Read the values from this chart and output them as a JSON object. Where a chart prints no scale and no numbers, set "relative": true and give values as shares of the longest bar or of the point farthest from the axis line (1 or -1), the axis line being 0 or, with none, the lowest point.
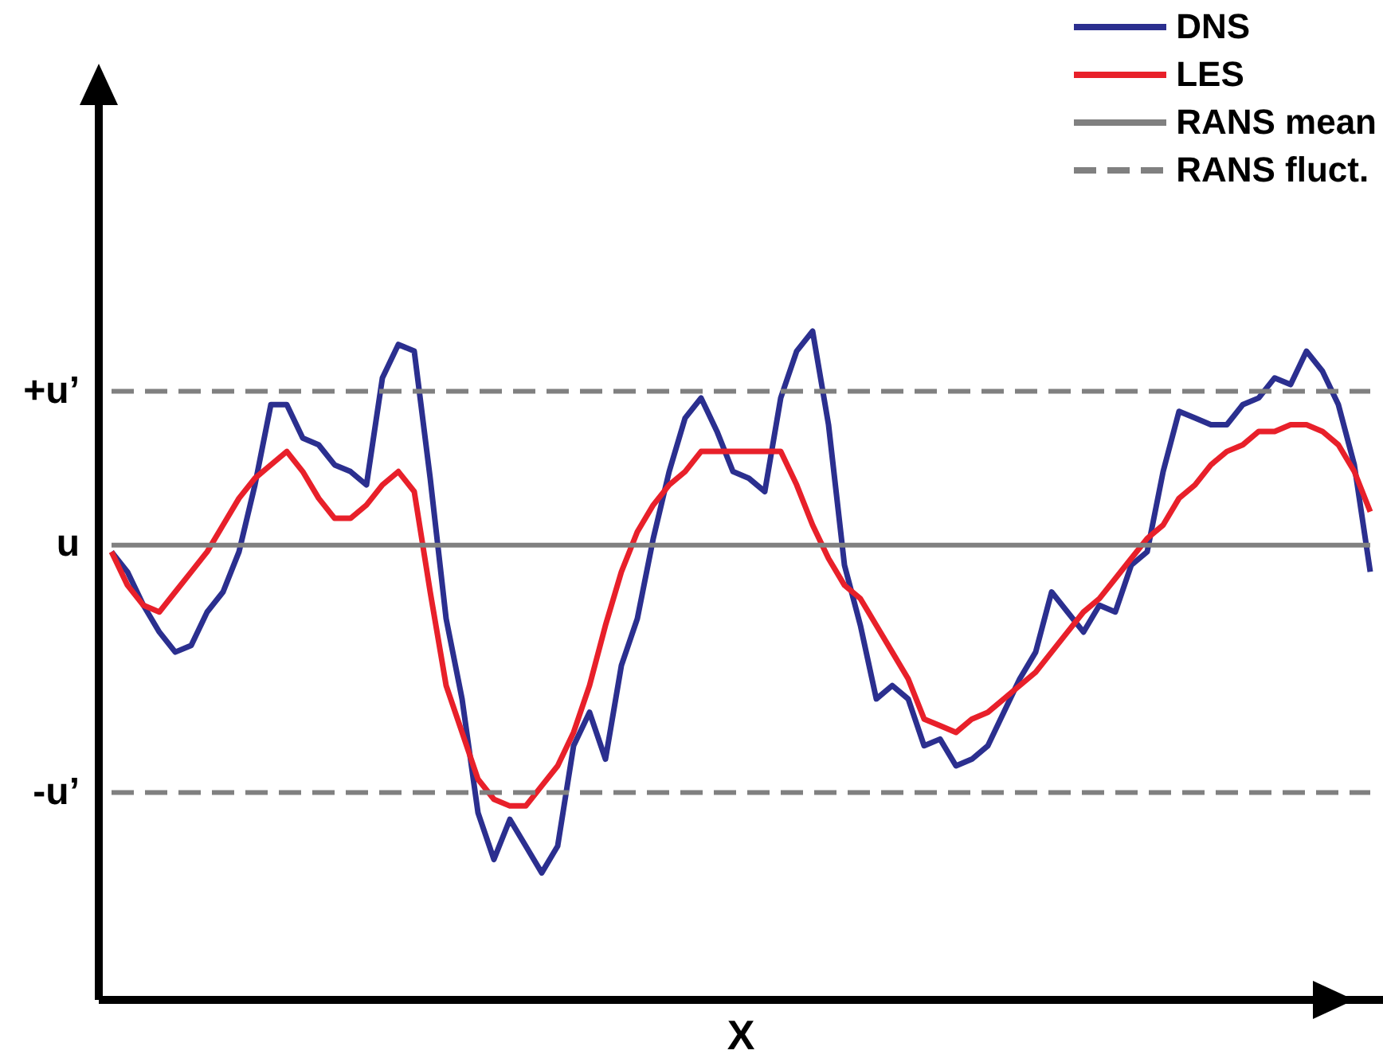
{
  "chart_data": {
    "type": "line",
    "xlabel": "X",
    "relative": true,
    "categories": [
      null,
      null,
      null,
      null,
      null,
      null,
      null,
      null,
      null,
      null,
      null,
      null,
      null,
      null,
      null,
      null,
      null,
      null,
      null,
      null,
      null,
      null,
      null,
      null,
      null,
      null,
      null,
      null,
      null,
      null,
      null,
      null,
      null,
      null,
      null,
      null,
      null,
      null,
      null,
      null,
      null,
      null,
      null,
      null,
      null,
      null,
      null,
      null,
      null,
      null,
      null,
      null,
      null,
      null,
      null,
      null,
      null,
      null,
      null,
      null,
      null,
      null,
      null,
      null,
      null,
      null,
      null,
      null,
      null,
      null,
      null,
      null,
      null,
      null,
      null,
      null,
      null,
      null,
      null,
      null
    ],
    "annotations": [
      "+u’",
      "u",
      "-u’"
    ],
    "grid": false,
    "legend": "top right",
    "marker": "none",
    "series": [
      {
        "name": "DNS",
        "color": "#2b2f8f",
        "line_style": "solid",
        "values": [
          0.67,
          0.64,
          0.59,
          0.55,
          0.52,
          0.53,
          0.58,
          0.61,
          0.67,
          0.77,
          0.89,
          0.89,
          0.84,
          0.83,
          0.8,
          0.79,
          0.77,
          0.93,
          0.98,
          0.97,
          0.78,
          0.57,
          0.45,
          0.28,
          0.21,
          0.27,
          0.23,
          0.19,
          0.23,
          0.38,
          0.43,
          0.36,
          0.5,
          0.57,
          0.69,
          0.79,
          0.87,
          0.9,
          0.85,
          0.79,
          0.78,
          0.76,
          0.9,
          0.97,
          1.0,
          0.86,
          0.65,
          0.56,
          0.45,
          0.47,
          0.45,
          0.38,
          0.39,
          0.35,
          0.36,
          0.38,
          0.43,
          0.48,
          0.52,
          0.61,
          0.58,
          0.55,
          0.59,
          0.58,
          0.65,
          0.67,
          0.79,
          0.88,
          0.87,
          0.86,
          0.86,
          0.89,
          0.9,
          0.93,
          0.92,
          0.97,
          0.94,
          0.89,
          0.8,
          0.64
        ]
      },
      {
        "name": "LES",
        "color": "#e8202a",
        "line_style": "solid",
        "values": [
          0.67,
          0.62,
          0.59,
          0.58,
          0.61,
          0.64,
          0.67,
          0.71,
          0.75,
          0.78,
          0.8,
          0.82,
          0.79,
          0.75,
          0.72,
          0.72,
          0.74,
          0.77,
          0.79,
          0.76,
          0.61,
          0.47,
          0.4,
          0.33,
          0.3,
          0.29,
          0.29,
          0.32,
          0.35,
          0.4,
          0.47,
          0.56,
          0.64,
          0.7,
          0.74,
          0.77,
          0.79,
          0.82,
          0.82,
          0.82,
          0.82,
          0.82,
          0.82,
          0.77,
          0.71,
          0.66,
          0.62,
          0.6,
          0.56,
          0.52,
          0.48,
          0.42,
          0.41,
          0.4,
          0.42,
          0.43,
          0.45,
          0.47,
          0.49,
          0.52,
          0.55,
          0.58,
          0.6,
          0.63,
          0.66,
          0.69,
          0.71,
          0.75,
          0.77,
          0.8,
          0.82,
          0.83,
          0.85,
          0.85,
          0.86,
          0.86,
          0.85,
          0.83,
          0.79,
          0.73
        ]
      },
      {
        "name": "RANS mean",
        "color": "#808080",
        "line_style": "solid",
        "values": [
          0.68,
          0.68,
          0.68,
          0.68,
          0.68,
          0.68,
          0.68,
          0.68,
          0.68,
          0.68,
          0.68,
          0.68,
          0.68,
          0.68,
          0.68,
          0.68,
          0.68,
          0.68,
          0.68,
          0.68,
          0.68,
          0.68,
          0.68,
          0.68,
          0.68,
          0.68,
          0.68,
          0.68,
          0.68,
          0.68,
          0.68,
          0.68,
          0.68,
          0.68,
          0.68,
          0.68,
          0.68,
          0.68,
          0.68,
          0.68,
          0.68,
          0.68,
          0.68,
          0.68,
          0.68,
          0.68,
          0.68,
          0.68,
          0.68,
          0.68,
          0.68,
          0.68,
          0.68,
          0.68,
          0.68,
          0.68,
          0.68,
          0.68,
          0.68,
          0.68,
          0.68,
          0.68,
          0.68,
          0.68,
          0.68,
          0.68,
          0.68,
          0.68,
          0.68,
          0.68,
          0.68,
          0.68,
          0.68,
          0.68,
          0.68,
          0.68,
          0.68,
          0.68,
          0.68,
          0.68
        ]
      },
      {
        "name": "RANS fluct.",
        "color": "#808080",
        "line_style": "dashed",
        "values": [
          0.91,
          0.91,
          0.91,
          0.91,
          0.91,
          0.91,
          0.91,
          0.91,
          0.91,
          0.91,
          0.91,
          0.91,
          0.91,
          0.91,
          0.91,
          0.91,
          0.91,
          0.91,
          0.91,
          0.91,
          0.91,
          0.91,
          0.91,
          0.91,
          0.91,
          0.91,
          0.91,
          0.91,
          0.91,
          0.91,
          0.91,
          0.91,
          0.91,
          0.91,
          0.91,
          0.91,
          0.91,
          0.91,
          0.91,
          0.91,
          0.91,
          0.91,
          0.91,
          0.91,
          0.91,
          0.91,
          0.91,
          0.91,
          0.91,
          0.91,
          0.91,
          0.91,
          0.91,
          0.91,
          0.91,
          0.91,
          0.91,
          0.91,
          0.91,
          0.91,
          0.91,
          0.91,
          0.91,
          0.91,
          0.91,
          0.91,
          0.91,
          0.91,
          0.91,
          0.91,
          0.91,
          0.91,
          0.91,
          0.91,
          0.91,
          0.91,
          0.91,
          0.91,
          0.91,
          0.91
        ]
      },
      {
        "color": "#808080",
        "line_style": "dashed",
        "values": [
          0.31,
          0.31,
          0.31,
          0.31,
          0.31,
          0.31,
          0.31,
          0.31,
          0.31,
          0.31,
          0.31,
          0.31,
          0.31,
          0.31,
          0.31,
          0.31,
          0.31,
          0.31,
          0.31,
          0.31,
          0.31,
          0.31,
          0.31,
          0.31,
          0.31,
          0.31,
          0.31,
          0.31,
          0.31,
          0.31,
          0.31,
          0.31,
          0.31,
          0.31,
          0.31,
          0.31,
          0.31,
          0.31,
          0.31,
          0.31,
          0.31,
          0.31,
          0.31,
          0.31,
          0.31,
          0.31,
          0.31,
          0.31,
          0.31,
          0.31,
          0.31,
          0.31,
          0.31,
          0.31,
          0.31,
          0.31,
          0.31,
          0.31,
          0.31,
          0.31,
          0.31,
          0.31,
          0.31,
          0.31,
          0.31,
          0.31,
          0.31,
          0.31,
          0.31,
          0.31,
          0.31,
          0.31,
          0.31,
          0.31,
          0.31,
          0.31,
          0.31,
          0.31,
          0.31,
          0.31
        ]
      }
    ]
  }
}
